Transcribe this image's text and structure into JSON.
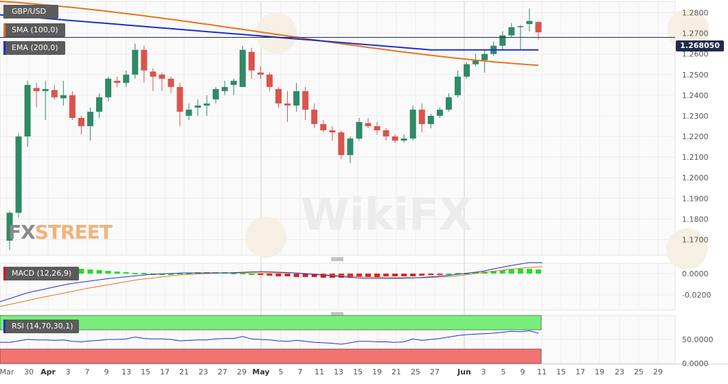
{
  "chart_data": {
    "type": "candlestick",
    "symbol": "GBP/USD",
    "indicators": {
      "sma_label": "SMA (100,0)",
      "ema_label": "EMA (200,0)",
      "macd_label": "MACD (12,26,9)",
      "rsi_label": "RSI (14,70,30,1)"
    },
    "last_price": "1.268050",
    "price_axis_ticks": [
      "1.2800",
      "1.2700",
      "1.2600",
      "1.2500",
      "1.2400",
      "1.2300",
      "1.2200",
      "1.2100",
      "1.2000",
      "1.1900",
      "1.1800",
      "1.1700"
    ],
    "macd_axis_ticks": [
      "0.0000",
      "-0.0200"
    ],
    "rsi_axis_ticks": [
      "50.0000",
      "0.0000"
    ],
    "x_tick_labels": [
      "Mar",
      "30",
      "Apr",
      "3",
      "7",
      "9",
      "13",
      "15",
      "17",
      "21",
      "23",
      "27",
      "29",
      "May",
      "5",
      "7",
      "11",
      "13",
      "15",
      "19",
      "21",
      "25",
      "27",
      "Jun",
      "3",
      "5",
      "9",
      "11",
      "15",
      "17",
      "19",
      "23",
      "25",
      "29"
    ],
    "ylim": [
      1.1625,
      1.2855
    ],
    "candles": [
      {
        "o": 1.1695,
        "h": 1.184,
        "l": 1.165,
        "c": 1.183
      },
      {
        "o": 1.183,
        "h": 1.2215,
        "l": 1.1805,
        "c": 1.22
      },
      {
        "o": 1.22,
        "h": 1.247,
        "l": 1.215,
        "c": 1.245
      },
      {
        "o": 1.2435,
        "h": 1.246,
        "l": 1.234,
        "c": 1.242
      },
      {
        "o": 1.242,
        "h": 1.247,
        "l": 1.228,
        "c": 1.243
      },
      {
        "o": 1.2425,
        "h": 1.245,
        "l": 1.238,
        "c": 1.239
      },
      {
        "o": 1.2385,
        "h": 1.247,
        "l": 1.235,
        "c": 1.24
      },
      {
        "o": 1.24,
        "h": 1.242,
        "l": 1.228,
        "c": 1.229
      },
      {
        "o": 1.229,
        "h": 1.23,
        "l": 1.221,
        "c": 1.225
      },
      {
        "o": 1.225,
        "h": 1.234,
        "l": 1.218,
        "c": 1.232
      },
      {
        "o": 1.232,
        "h": 1.241,
        "l": 1.229,
        "c": 1.239
      },
      {
        "o": 1.239,
        "h": 1.249,
        "l": 1.237,
        "c": 1.248
      },
      {
        "o": 1.247,
        "h": 1.249,
        "l": 1.244,
        "c": 1.246
      },
      {
        "o": 1.246,
        "h": 1.252,
        "l": 1.244,
        "c": 1.25
      },
      {
        "o": 1.25,
        "h": 1.265,
        "l": 1.248,
        "c": 1.262
      },
      {
        "o": 1.262,
        "h": 1.264,
        "l": 1.246,
        "c": 1.252
      },
      {
        "o": 1.2515,
        "h": 1.253,
        "l": 1.242,
        "c": 1.249
      },
      {
        "o": 1.25,
        "h": 1.251,
        "l": 1.242,
        "c": 1.248
      },
      {
        "o": 1.248,
        "h": 1.249,
        "l": 1.241,
        "c": 1.244
      },
      {
        "o": 1.244,
        "h": 1.246,
        "l": 1.225,
        "c": 1.232
      },
      {
        "o": 1.23,
        "h": 1.236,
        "l": 1.228,
        "c": 1.233
      },
      {
        "o": 1.234,
        "h": 1.238,
        "l": 1.23,
        "c": 1.235
      },
      {
        "o": 1.235,
        "h": 1.24,
        "l": 1.23,
        "c": 1.236
      },
      {
        "o": 1.238,
        "h": 1.244,
        "l": 1.236,
        "c": 1.243
      },
      {
        "o": 1.242,
        "h": 1.247,
        "l": 1.24,
        "c": 1.244
      },
      {
        "o": 1.245,
        "h": 1.248,
        "l": 1.24,
        "c": 1.247
      },
      {
        "o": 1.244,
        "h": 1.264,
        "l": 1.244,
        "c": 1.262
      },
      {
        "o": 1.261,
        "h": 1.263,
        "l": 1.248,
        "c": 1.252
      },
      {
        "o": 1.251,
        "h": 1.254,
        "l": 1.248,
        "c": 1.25
      },
      {
        "o": 1.25,
        "h": 1.251,
        "l": 1.242,
        "c": 1.244
      },
      {
        "o": 1.243,
        "h": 1.244,
        "l": 1.234,
        "c": 1.236
      },
      {
        "o": 1.236,
        "h": 1.242,
        "l": 1.227,
        "c": 1.235
      },
      {
        "o": 1.235,
        "h": 1.246,
        "l": 1.232,
        "c": 1.242
      },
      {
        "o": 1.242,
        "h": 1.244,
        "l": 1.228,
        "c": 1.233
      },
      {
        "o": 1.233,
        "h": 1.236,
        "l": 1.224,
        "c": 1.226
      },
      {
        "o": 1.226,
        "h": 1.228,
        "l": 1.222,
        "c": 1.223
      },
      {
        "o": 1.223,
        "h": 1.225,
        "l": 1.218,
        "c": 1.222
      },
      {
        "o": 1.222,
        "h": 1.223,
        "l": 1.209,
        "c": 1.211
      },
      {
        "o": 1.211,
        "h": 1.22,
        "l": 1.207,
        "c": 1.219
      },
      {
        "o": 1.219,
        "h": 1.229,
        "l": 1.218,
        "c": 1.227
      },
      {
        "o": 1.2265,
        "h": 1.229,
        "l": 1.224,
        "c": 1.225
      },
      {
        "o": 1.225,
        "h": 1.227,
        "l": 1.221,
        "c": 1.223
      },
      {
        "o": 1.223,
        "h": 1.224,
        "l": 1.218,
        "c": 1.22
      },
      {
        "o": 1.22,
        "h": 1.221,
        "l": 1.217,
        "c": 1.218
      },
      {
        "o": 1.218,
        "h": 1.221,
        "l": 1.217,
        "c": 1.219
      },
      {
        "o": 1.219,
        "h": 1.235,
        "l": 1.218,
        "c": 1.233
      },
      {
        "o": 1.233,
        "h": 1.236,
        "l": 1.222,
        "c": 1.226
      },
      {
        "o": 1.226,
        "h": 1.231,
        "l": 1.224,
        "c": 1.23
      },
      {
        "o": 1.23,
        "h": 1.234,
        "l": 1.229,
        "c": 1.233
      },
      {
        "o": 1.233,
        "h": 1.241,
        "l": 1.232,
        "c": 1.239
      },
      {
        "o": 1.24,
        "h": 1.252,
        "l": 1.239,
        "c": 1.249
      },
      {
        "o": 1.249,
        "h": 1.256,
        "l": 1.248,
        "c": 1.255
      },
      {
        "o": 1.255,
        "h": 1.26,
        "l": 1.254,
        "c": 1.257
      },
      {
        "o": 1.257,
        "h": 1.262,
        "l": 1.251,
        "c": 1.26
      },
      {
        "o": 1.26,
        "h": 1.266,
        "l": 1.259,
        "c": 1.264
      },
      {
        "o": 1.264,
        "h": 1.271,
        "l": 1.262,
        "c": 1.269
      },
      {
        "o": 1.269,
        "h": 1.275,
        "l": 1.268,
        "c": 1.273
      },
      {
        "o": 1.273,
        "h": 1.274,
        "l": 1.262,
        "c": 1.2735
      },
      {
        "o": 1.2745,
        "h": 1.282,
        "l": 1.271,
        "c": 1.276
      },
      {
        "o": 1.2755,
        "h": 1.276,
        "l": 1.267,
        "c": 1.2705
      }
    ],
    "macd_histogram": [
      0.0004,
      0.0005,
      0.0006,
      0.0007,
      0.0008,
      0.0008,
      0.0009,
      0.0008,
      0.0007,
      0.0006,
      0.0005,
      0.0004,
      0.0003,
      0.0002,
      0.0001,
      0.0001,
      0.0,
      0.0,
      0.0,
      0.0001,
      0.0001,
      0.0002,
      0.0002,
      0.0002,
      0.0002,
      0.0001,
      0.0001,
      0.0,
      -0.0002,
      -0.0003,
      -0.0004,
      -0.0004,
      -0.0005,
      -0.0005,
      -0.0005,
      -0.0006,
      -0.0006,
      -0.0006,
      -0.0006,
      -0.0005,
      -0.0005,
      -0.0005,
      -0.0004,
      -0.0004,
      -0.0004,
      -0.0004,
      -0.0003,
      -0.0002,
      -0.0001,
      0.0,
      0.0001,
      0.0001,
      0.0002,
      0.0003,
      0.0004,
      0.0005,
      0.0006,
      0.0007,
      0.0007,
      0.0006
    ],
    "rsi_values": [
      44,
      47,
      50,
      49,
      49,
      48,
      49,
      46,
      45,
      47,
      48,
      50,
      50,
      51,
      55,
      52,
      51,
      51,
      50,
      47,
      48,
      49,
      49,
      51,
      52,
      52,
      56,
      51,
      50,
      49,
      47,
      46,
      48,
      46,
      44,
      43,
      42,
      40,
      43,
      46,
      46,
      45,
      45,
      44,
      45,
      51,
      48,
      50,
      52,
      55,
      58,
      60,
      61,
      62,
      63,
      65,
      67,
      66,
      68,
      63
    ]
  }
}
